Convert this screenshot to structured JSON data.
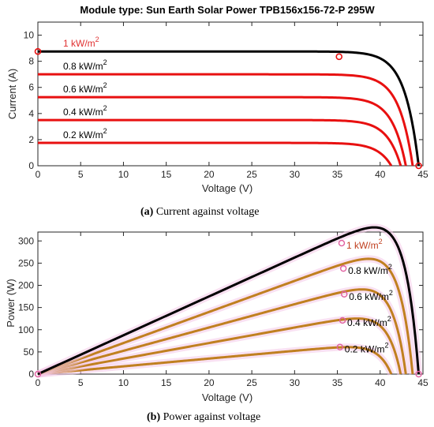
{
  "chart_data": [
    {
      "type": "line",
      "title": "Module type: Sun Earth Solar Power TPB156x156-72-P 295W",
      "xlabel": "Voltage (V)",
      "ylabel": "Current (A)",
      "xlim": [
        0,
        45
      ],
      "ylim": [
        0,
        11
      ],
      "xticks": [
        "0",
        "5",
        "10",
        "15",
        "20",
        "25",
        "30",
        "35",
        "40",
        "45"
      ],
      "yticks": [
        "0",
        "2",
        "4",
        "6",
        "8",
        "10"
      ],
      "caption_letter": "(a)",
      "caption_text": " Current against voltage",
      "series": [
        {
          "label": "1 kW/m",
          "sup": "2",
          "isc": 8.75,
          "voc": 44.5,
          "color": "#000000",
          "mpp": [
            35.2,
            8.35
          ],
          "label_color": "#e03030"
        },
        {
          "label": "0.8 kW/m",
          "sup": "2",
          "isc": 7.0,
          "voc": 43.8,
          "color": "#e81010",
          "label_color": "#000000"
        },
        {
          "label": "0.6 kW/m",
          "sup": "2",
          "isc": 5.25,
          "voc": 43.0,
          "color": "#e81010",
          "label_color": "#000000"
        },
        {
          "label": "0.4 kW/m",
          "sup": "2",
          "isc": 3.5,
          "voc": 42.4,
          "color": "#e81010",
          "label_color": "#000000"
        },
        {
          "label": "0.2 kW/m",
          "sup": "2",
          "isc": 1.75,
          "voc": 41.3,
          "color": "#e81010",
          "label_color": "#000000"
        }
      ]
    },
    {
      "type": "line",
      "title": "",
      "xlabel": "Voltage (V)",
      "ylabel": "Power (W)",
      "xlim": [
        0,
        45
      ],
      "ylim": [
        0,
        320
      ],
      "xticks": [
        "0",
        "5",
        "10",
        "15",
        "20",
        "25",
        "30",
        "35",
        "40",
        "45"
      ],
      "yticks": [
        "0",
        "50",
        "100",
        "150",
        "200",
        "250",
        "300"
      ],
      "caption_letter": "(b)",
      "caption_text": " Power against voltage",
      "series": [
        {
          "label": "1 kW/m",
          "sup": "2",
          "isc": 8.75,
          "voc": 44.5,
          "color": "#000000",
          "mpp": [
            35.5,
            295
          ],
          "label_color": "#c04020"
        },
        {
          "label": "0.8 kW/m",
          "sup": "2",
          "isc": 7.0,
          "voc": 43.8,
          "color": "#c08020",
          "mpp": [
            35.7,
            238
          ],
          "label_color": "#000000"
        },
        {
          "label": "0.6 kW/m",
          "sup": "2",
          "isc": 5.25,
          "voc": 43.0,
          "color": "#c08020",
          "mpp": [
            35.8,
            180
          ],
          "label_color": "#000000"
        },
        {
          "label": "0.4 kW/m",
          "sup": "2",
          "isc": 3.5,
          "voc": 42.4,
          "color": "#c08020",
          "mpp": [
            35.6,
            121
          ],
          "label_color": "#000000"
        },
        {
          "label": "0.2 kW/m",
          "sup": "2",
          "isc": 1.75,
          "voc": 41.3,
          "color": "#c08020",
          "mpp": [
            35.3,
            61
          ],
          "label_color": "#000000"
        }
      ]
    }
  ]
}
